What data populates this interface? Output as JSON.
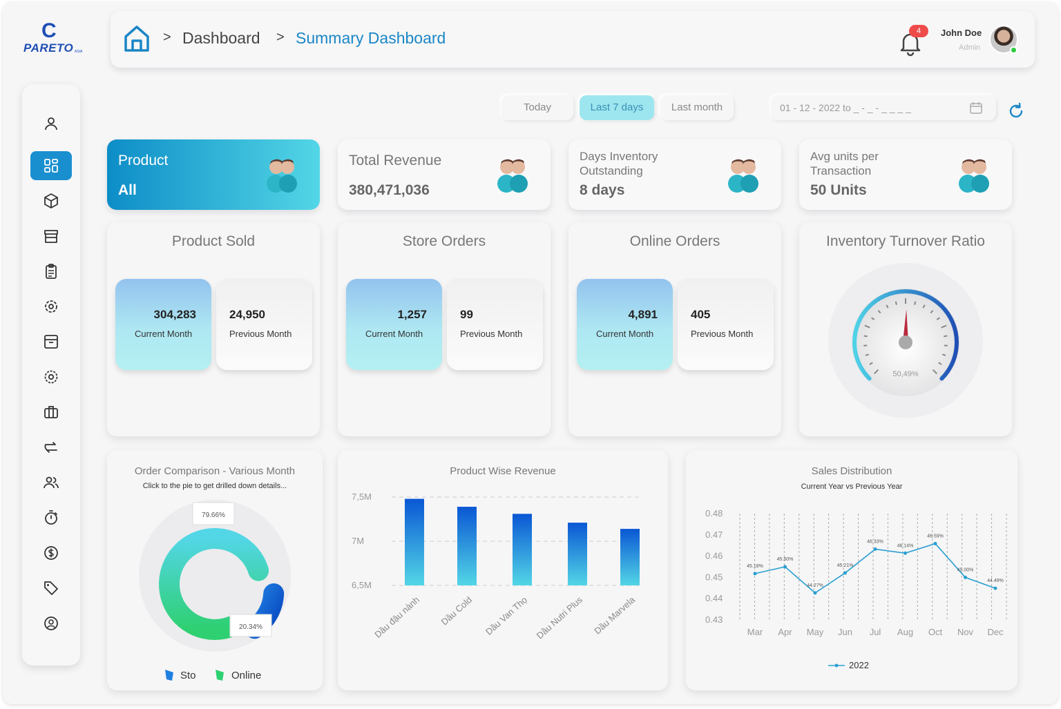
{
  "brand": {
    "logo_text": "PARETO",
    "logo_sub": "ASIA"
  },
  "header": {
    "breadcrumb": [
      "Dashboard",
      "Summary Dashboard"
    ],
    "notifications_count": "4",
    "user_name": "John Doe",
    "user_role": "Admin"
  },
  "sidebar": {
    "items": [
      {
        "icon": "user-icon"
      },
      {
        "icon": "dashboard-grid-icon",
        "active": true
      },
      {
        "icon": "cube-icon"
      },
      {
        "icon": "store-icon"
      },
      {
        "icon": "clipboard-icon"
      },
      {
        "icon": "settings-gear-badge-icon"
      },
      {
        "icon": "archive-box-icon"
      },
      {
        "icon": "gear-icon"
      },
      {
        "icon": "briefcase-icon"
      },
      {
        "icon": "transfer-icon"
      },
      {
        "icon": "users-icon"
      },
      {
        "icon": "stopwatch-icon"
      },
      {
        "icon": "dollar-icon"
      },
      {
        "icon": "tag-icon"
      },
      {
        "icon": "support-icon"
      }
    ]
  },
  "filters": {
    "today": "Today",
    "last7": "Last 7 days",
    "last_month": "Last month",
    "date_range": "01 - 12 - 2022 to _ - _ - _ _ _ _",
    "active": "Last 7 days"
  },
  "kpis": [
    {
      "label": "Product",
      "value": "All"
    },
    {
      "label": "Total Revenue",
      "value": "380,471,036"
    },
    {
      "label": "Days Inventory Outstanding",
      "value": "8 days"
    },
    {
      "label": "Avg units per Transaction",
      "value": "50 Units"
    }
  ],
  "comparisons": [
    {
      "title": "Product Sold",
      "current": "304,283",
      "current_label": "Current Month",
      "previous": "24,950",
      "previous_label": "Previous Month"
    },
    {
      "title": "Store Orders",
      "current": "1,257",
      "current_label": "Current Month",
      "previous": "99",
      "previous_label": "Previous Month"
    },
    {
      "title": "Online Orders",
      "current": "4,891",
      "current_label": "Current Month",
      "previous": "405",
      "previous_label": "Previous Month"
    }
  ],
  "gauge": {
    "title": "Inventory Turnover Ratio",
    "value_label": "50,49%",
    "value": 50.49
  },
  "order_comparison": {
    "title": "Order Comparison - Various Month",
    "subtitle": "Click to the pie to get drilled down details...",
    "legend": [
      "Sto",
      "Online"
    ]
  },
  "product_revenue": {
    "title": "Product Wise Revenue"
  },
  "sales_distribution": {
    "title": "Sales Distribution",
    "subtitle": "Current Year vs Previous Year"
  },
  "colors": {
    "accent": "#1a8fcf",
    "teal": "#53d6e6",
    "green": "#2ed071",
    "blue_bar": "#0a57d4"
  },
  "chart_data": [
    {
      "type": "pie",
      "title": "Order Comparison - Various Month",
      "categories": [
        "Online",
        "Sto"
      ],
      "values": [
        79.66,
        20.34
      ],
      "labels": [
        "79.66%",
        "20.34%"
      ]
    },
    {
      "type": "bar",
      "title": "Product Wise Revenue",
      "categories": [
        "Dầu đậu nành",
        "Dầu Cold",
        "Dầu Van Thọ",
        "Dầu Nutri Plus",
        "Dầu Marvela"
      ],
      "values": [
        7480000,
        7390000,
        7310000,
        7210000,
        7140000
      ],
      "ylim": [
        6500000,
        7500000
      ],
      "yticks": [
        "7,5M",
        "7M",
        "6,5M"
      ]
    },
    {
      "type": "line",
      "title": "Sales Distribution",
      "x": [
        "Mar",
        "Apr",
        "May",
        "Jun",
        "Jul",
        "Aug",
        "Oct",
        "Nov",
        "Dec"
      ],
      "series": [
        {
          "name": "2022",
          "values": [
            0.4518,
            0.455,
            0.4427,
            0.4521,
            0.4633,
            0.4614,
            0.4659,
            0.45,
            0.4449
          ],
          "labels": [
            "45.18%",
            "45.50%",
            "44.27%",
            "45.21%",
            "46.33%",
            "46.14%",
            "46.59%",
            "45.00%",
            "44.49%"
          ]
        }
      ],
      "ylim": [
        0.43,
        0.48
      ],
      "yticks": [
        "0.48",
        "0.47",
        "0.46",
        "0.45",
        "0.44",
        "0.43"
      ]
    }
  ]
}
